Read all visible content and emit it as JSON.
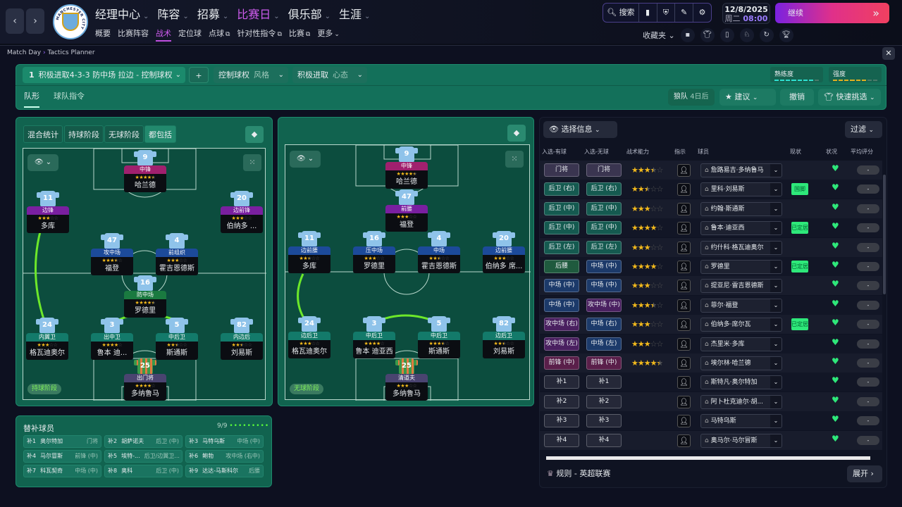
{
  "topbar": {
    "back_icon": "chevron-left",
    "forward_icon": "chevron-right",
    "club_logo_text": "MANCHESTER CITY",
    "main_nav": [
      {
        "label": "经理中心",
        "active": false
      },
      {
        "label": "阵容",
        "active": false
      },
      {
        "label": "招募",
        "active": false
      },
      {
        "label": "比赛日",
        "active": true
      },
      {
        "label": "俱乐部",
        "active": false
      },
      {
        "label": "生涯",
        "active": false
      }
    ],
    "sub_nav": [
      {
        "label": "概要"
      },
      {
        "label": "比赛阵容"
      },
      {
        "label": "战术",
        "active": true
      },
      {
        "label": "定位球"
      },
      {
        "label": "点球",
        "external": true
      },
      {
        "label": "针对性指令",
        "external": true
      },
      {
        "label": "比赛",
        "external": true
      },
      {
        "label": "更多"
      }
    ],
    "search_label": "搜索",
    "date": "12/8/2025",
    "weekday": "周二",
    "time": "08:00",
    "continue_label": "继续",
    "favorites_label": "收藏夹",
    "accent_color": "#c04ee0"
  },
  "breadcrumb": [
    "Match Day",
    "Tactics Planner"
  ],
  "tactic": {
    "number": "1",
    "name": "积极进取4-3-3 防中场 拉边 - 控制球权",
    "add_label": "+",
    "style_value": "控制球权",
    "style_label": "风格",
    "mentality_value": "积极进取",
    "mentality_label": "心态",
    "familiarity_label": "熟练度",
    "familiarity_level": 0.8,
    "intensity_label": "强度",
    "intensity_level": 0.7,
    "tabs": [
      {
        "label": "队形",
        "active": true
      },
      {
        "label": "球队指令"
      }
    ],
    "opponent": "狼队",
    "opponent_when": "4日后",
    "suggest_label": "建议",
    "undo_label": "撤销",
    "quick_pick_label": "快速挑选"
  },
  "pitch_left": {
    "tabs": [
      {
        "label": "混合统计"
      },
      {
        "label": "持球阶段"
      },
      {
        "label": "无球阶段"
      },
      {
        "label": "都包括",
        "active": true
      }
    ],
    "phase_label": "持球阶段",
    "players": [
      {
        "number": "9",
        "role": "中锋",
        "rating": 4.5,
        "name": "哈兰德",
        "color": "#a0206e"
      },
      {
        "number": "11",
        "role": "边锋",
        "rating": 3,
        "name": "多库",
        "color": "#7a1fa0"
      },
      {
        "number": "20",
        "role": "边前锋",
        "rating": 3,
        "name": "伯纳多 ...",
        "color": "#7a1fa0"
      },
      {
        "number": "47",
        "role": "攻中场",
        "rating": 3.5,
        "name": "福登",
        "color": "#1c4a9a"
      },
      {
        "number": "4",
        "role": "前组织",
        "rating": 3,
        "name": "霍吉恩德斯",
        "color": "#1c4a9a"
      },
      {
        "number": "16",
        "role": "防中场",
        "rating": 4.5,
        "name": "罗德里",
        "color": "#1a7a40"
      },
      {
        "number": "24",
        "role": "内翼卫",
        "rating": 3,
        "name": "格瓦迪奥尔",
        "color": "#137a6a"
      },
      {
        "number": "3",
        "role": "出中卫",
        "rating": 4,
        "name": "鲁本 迪...",
        "color": "#137a6a"
      },
      {
        "number": "5",
        "role": "中后卫",
        "rating": 2.5,
        "name": "斯通斯",
        "color": "#137a6a"
      },
      {
        "number": "82",
        "role": "内边后",
        "rating": 2.5,
        "name": "刘易斯",
        "color": "#137a6a"
      },
      {
        "number": "25",
        "role": "出门将",
        "rating": 4,
        "name": "多纳鲁马",
        "color": "#4a4470",
        "gk": true
      }
    ]
  },
  "pitch_right": {
    "phase_label": "无球阶段",
    "players": [
      {
        "number": "9",
        "role": "中锋",
        "rating": 4.5,
        "name": "哈兰德",
        "color": "#a0206e"
      },
      {
        "number": "47",
        "role": "前腰",
        "rating": 3,
        "name": "福登",
        "color": "#7a1fa0"
      },
      {
        "number": "11",
        "role": "边前腰",
        "rating": 2.5,
        "name": "多库",
        "color": "#1c4a9a"
      },
      {
        "number": "16",
        "role": "压中场",
        "rating": 3,
        "name": "罗德里",
        "color": "#1c4a9a"
      },
      {
        "number": "4",
        "role": "中场",
        "rating": 2.5,
        "name": "霍吉恩德斯",
        "color": "#1c4a9a"
      },
      {
        "number": "20",
        "role": "边前腰",
        "rating": 3,
        "name": "伯纳多 席...",
        "color": "#1c4a9a"
      },
      {
        "number": "24",
        "role": "边后卫",
        "rating": 3,
        "name": "格瓦迪奥尔",
        "color": "#137a6a"
      },
      {
        "number": "3",
        "role": "中后卫",
        "rating": 4,
        "name": "鲁本 迪亚西",
        "color": "#137a6a"
      },
      {
        "number": "5",
        "role": "中后卫",
        "rating": 3.5,
        "name": "斯通斯",
        "color": "#137a6a"
      },
      {
        "number": "82",
        "role": "边后卫",
        "rating": 2.5,
        "name": "刘易斯",
        "color": "#137a6a"
      },
      {
        "number": "25",
        "role": "清道夫",
        "rating": 3,
        "name": "多纳鲁马",
        "color": "#4a4470",
        "gk": true
      }
    ]
  },
  "subs": {
    "title": "替补球员",
    "count": "9/9",
    "items": [
      {
        "slot": "补1",
        "name": "奥尔特加",
        "pos": "门将"
      },
      {
        "slot": "补2",
        "name": "胡萨诺夫",
        "pos": "后卫 (中)"
      },
      {
        "slot": "补3",
        "name": "马特乌斯",
        "pos": "中场 (中)"
      },
      {
        "slot": "补4",
        "name": "马尔冒斯",
        "pos": "前锋 (中)"
      },
      {
        "slot": "补5",
        "name": "埃特-...",
        "pos": "后卫/边翼卫..."
      },
      {
        "slot": "补6",
        "name": "鲍勃",
        "pos": "攻中场 (右中)"
      },
      {
        "slot": "补7",
        "name": "科瓦契奇",
        "pos": "中场 (中)"
      },
      {
        "slot": "补8",
        "name": "奥科",
        "pos": "后卫 (中)"
      },
      {
        "slot": "补9",
        "name": "达达-马斯科尔",
        "pos": "后腰"
      }
    ]
  },
  "selection": {
    "info_label": "选择信息",
    "filter_label": "过滤",
    "columns": [
      "入选-有球",
      "入选-无球",
      "战术能力",
      "指示",
      "球员",
      "现状",
      "状况",
      "平均评分"
    ],
    "rows": [
      {
        "r1": "门将",
        "r2": "门将",
        "c1": "#3a3550",
        "c2": "#3a3550",
        "stars": 3.5,
        "player": "詹路易吉·多纳鲁马",
        "status": "",
        "rating": "-"
      },
      {
        "r1": "后卫 (右)",
        "r2": "后卫 (右)",
        "c1": "#155a50",
        "c2": "#155a50",
        "stars": 2.5,
        "player": "里科·刘易斯",
        "status": "国脚",
        "rating": "-"
      },
      {
        "r1": "后卫 (中)",
        "r2": "后卫 (中)",
        "c1": "#155a50",
        "c2": "#155a50",
        "stars": 3,
        "player": "约翰·斯通斯",
        "status": "",
        "rating": "-"
      },
      {
        "r1": "后卫 (中)",
        "r2": "后卫 (中)",
        "c1": "#155a50",
        "c2": "#155a50",
        "stars": 4,
        "player": "鲁本·迪亚西",
        "status": "已定居",
        "rating": "-"
      },
      {
        "r1": "后卫 (左)",
        "r2": "后卫 (左)",
        "c1": "#155a50",
        "c2": "#155a50",
        "stars": 3,
        "player": "约什科·格瓦迪奥尔",
        "status": "",
        "rating": "-"
      },
      {
        "r1": "后腰",
        "r2": "中场 (中)",
        "c1": "#1f5a3e",
        "c2": "#1c3a6a",
        "stars": 4,
        "player": "罗德里",
        "status": "已定居",
        "rating": "-"
      },
      {
        "r1": "中场 (中)",
        "r2": "中场 (中)",
        "c1": "#1c3a6a",
        "c2": "#1c3a6a",
        "stars": 3,
        "player": "提亚尼·雷吉恩德斯",
        "status": "",
        "rating": "-"
      },
      {
        "r1": "中场 (中)",
        "r2": "攻中场 (中)",
        "c1": "#1c3a6a",
        "c2": "#4a2060",
        "stars": 3.5,
        "player": "菲尔·福登",
        "status": "",
        "rating": "-"
      },
      {
        "r1": "攻中场 (右)",
        "r2": "中场 (右)",
        "c1": "#4a2060",
        "c2": "#1c3a6a",
        "stars": 3,
        "player": "伯纳多·席尔瓦",
        "status": "已定居",
        "rating": "-"
      },
      {
        "r1": "攻中场 (左)",
        "r2": "中场 (左)",
        "c1": "#4a2060",
        "c2": "#1c3a6a",
        "stars": 3,
        "player": "杰里米·多库",
        "status": "",
        "rating": "-"
      },
      {
        "r1": "前锋 (中)",
        "r2": "前锋 (中)",
        "c1": "#5a1f4a",
        "c2": "#5a1f4a",
        "stars": 4.5,
        "player": "埃尔林·哈兰德",
        "status": "",
        "rating": "-"
      },
      {
        "r1": "补1",
        "r2": "补1",
        "c1": "#252838",
        "c2": "#252838",
        "stars": 0,
        "player": "斯特凡·奥尔特加",
        "status": "",
        "rating": "-"
      },
      {
        "r1": "补2",
        "r2": "补2",
        "c1": "#252838",
        "c2": "#252838",
        "stars": 0,
        "player": "阿卜杜克迪尔·胡...",
        "status": "",
        "rating": "-"
      },
      {
        "r1": "补3",
        "r2": "补3",
        "c1": "#252838",
        "c2": "#252838",
        "stars": 0,
        "player": "马特乌斯",
        "status": "",
        "rating": "-"
      },
      {
        "r1": "补4",
        "r2": "补4",
        "c1": "#252838",
        "c2": "#252838",
        "stars": 0,
        "player": "奥马尔·马尔冒斯",
        "status": "",
        "rating": "-"
      }
    ],
    "rules_label": "规则 - 英超联赛",
    "expand_label": "展开"
  }
}
